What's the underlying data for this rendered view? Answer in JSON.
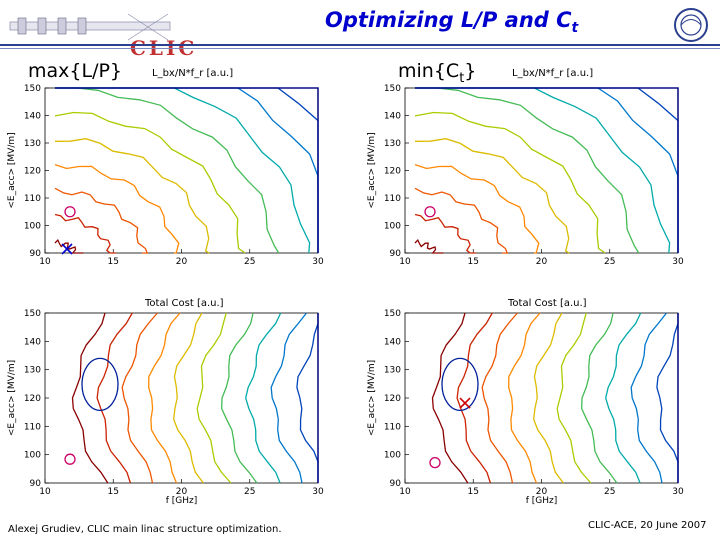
{
  "title": {
    "text": "Optimizing L/P and C",
    "subscript": "t"
  },
  "logo_text": "CLIC",
  "left_header": "max{L/P}",
  "right_header_main": "min{C",
  "right_header_sub": "t",
  "right_header_close": "}",
  "footer_left": "Alexej Grudiev, CLIC main linac structure optimization.",
  "footer_right": "CLIC-ACE, 20 June 2007",
  "plots": [
    {
      "name": "top-left",
      "title": "L_bx/N*f_r [a.u.]",
      "x_ticks": [
        "10",
        "15",
        "20",
        "25",
        "30"
      ],
      "y_ticks": [
        "90",
        "100",
        "110",
        "120",
        "130",
        "140",
        "150"
      ],
      "xlabel": "",
      "ylabel": "<E_acc> [MV/m]"
    },
    {
      "name": "top-right",
      "title": "L_bx/N*f_r [a.u.]",
      "x_ticks": [
        "10",
        "15",
        "20",
        "25",
        "30"
      ],
      "y_ticks": [
        "90",
        "100",
        "110",
        "120",
        "130",
        "140",
        "150"
      ],
      "xlabel": "",
      "ylabel": "<E_acc> [MV/m]"
    },
    {
      "name": "bottom-left",
      "title": "Total Cost [a.u.]",
      "x_ticks": [
        "10",
        "15",
        "20",
        "25",
        "30"
      ],
      "y_ticks": [
        "90",
        "100",
        "110",
        "120",
        "130",
        "140",
        "150"
      ],
      "xlabel": "f [GHz]",
      "ylabel": "<E_acc> [MV/m]"
    },
    {
      "name": "bottom-right",
      "title": "Total Cost [a.u.]",
      "x_ticks": [
        "10",
        "15",
        "20",
        "25",
        "30"
      ],
      "y_ticks": [
        "90",
        "100",
        "110",
        "120",
        "130",
        "140",
        "150"
      ],
      "xlabel": "f [GHz]",
      "ylabel": "<E_acc> [MV/m]"
    }
  ],
  "colors": {
    "title": "#0000cc",
    "logo": "#c03030",
    "header_bar": "#2b3f8f"
  }
}
